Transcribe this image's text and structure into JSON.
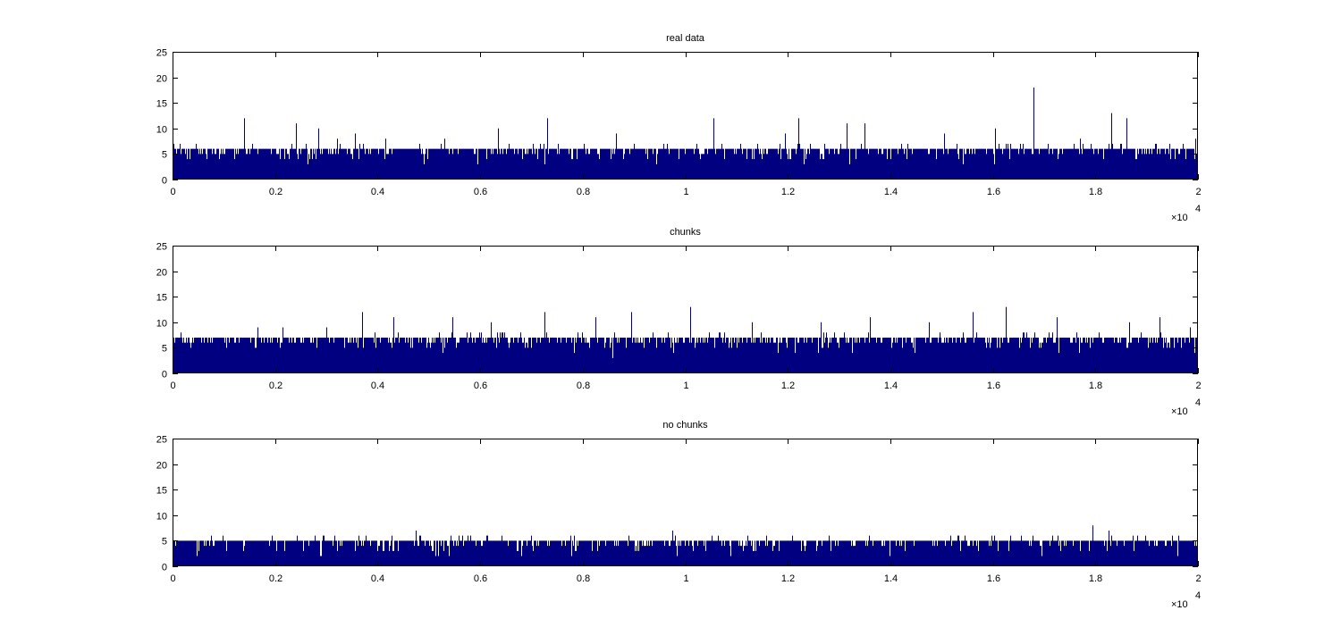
{
  "figure": {
    "background": "#ffffff"
  },
  "chart_data": [
    {
      "type": "bar",
      "title": "real data",
      "xlabel": "",
      "ylabel": "",
      "xlim": [
        0,
        20000
      ],
      "ylim": [
        0,
        25
      ],
      "xticks": [
        0,
        2000,
        4000,
        6000,
        8000,
        10000,
        12000,
        14000,
        16000,
        18000,
        20000
      ],
      "xtick_labels": [
        "0",
        "0.2",
        "0.4",
        "0.6",
        "0.8",
        "1",
        "1.2",
        "1.4",
        "1.6",
        "1.8",
        "2"
      ],
      "xtick_exponent": {
        "base": "×10",
        "power": "4"
      },
      "yticks": [
        0,
        5,
        10,
        15,
        20,
        25
      ],
      "ytick_labels": [
        "0",
        "5",
        "10",
        "15",
        "20",
        "25"
      ],
      "grid": false,
      "color": "#000080",
      "bin_count": 20000,
      "baseline_level": 3,
      "noise_amplitude": 2,
      "peaks": [
        {
          "x": 1400,
          "y": 12
        },
        {
          "x": 2400,
          "y": 11
        },
        {
          "x": 2850,
          "y": 10
        },
        {
          "x": 3200,
          "y": 8
        },
        {
          "x": 3550,
          "y": 9
        },
        {
          "x": 4150,
          "y": 8
        },
        {
          "x": 5300,
          "y": 8
        },
        {
          "x": 6350,
          "y": 10
        },
        {
          "x": 7300,
          "y": 12
        },
        {
          "x": 8650,
          "y": 9
        },
        {
          "x": 10550,
          "y": 12
        },
        {
          "x": 11950,
          "y": 9
        },
        {
          "x": 12200,
          "y": 12
        },
        {
          "x": 13150,
          "y": 11
        },
        {
          "x": 13500,
          "y": 11
        },
        {
          "x": 15050,
          "y": 9
        },
        {
          "x": 16050,
          "y": 10
        },
        {
          "x": 16800,
          "y": 18
        },
        {
          "x": 17700,
          "y": 8
        },
        {
          "x": 18300,
          "y": 13
        },
        {
          "x": 18600,
          "y": 12
        },
        {
          "x": 19700,
          "y": 7
        },
        {
          "x": 19950,
          "y": 8
        }
      ]
    },
    {
      "type": "bar",
      "title": "chunks",
      "xlabel": "",
      "ylabel": "",
      "xlim": [
        0,
        20000
      ],
      "ylim": [
        0,
        25
      ],
      "xticks": [
        0,
        2000,
        4000,
        6000,
        8000,
        10000,
        12000,
        14000,
        16000,
        18000,
        20000
      ],
      "xtick_labels": [
        "0",
        "0.2",
        "0.4",
        "0.6",
        "0.8",
        "1",
        "1.2",
        "1.4",
        "1.6",
        "1.8",
        "2"
      ],
      "xtick_exponent": {
        "base": "×10",
        "power": "4"
      },
      "yticks": [
        0,
        5,
        10,
        15,
        20,
        25
      ],
      "ytick_labels": [
        "0",
        "5",
        "10",
        "15",
        "20",
        "25"
      ],
      "grid": false,
      "color": "#000080",
      "bin_count": 20000,
      "baseline_level": 3,
      "noise_amplitude": 3,
      "peaks": [
        {
          "x": 150,
          "y": 8
        },
        {
          "x": 1650,
          "y": 9
        },
        {
          "x": 2150,
          "y": 9
        },
        {
          "x": 3000,
          "y": 9
        },
        {
          "x": 3700,
          "y": 12
        },
        {
          "x": 4300,
          "y": 11
        },
        {
          "x": 5450,
          "y": 11
        },
        {
          "x": 6200,
          "y": 10
        },
        {
          "x": 7250,
          "y": 12
        },
        {
          "x": 8250,
          "y": 11
        },
        {
          "x": 8950,
          "y": 12
        },
        {
          "x": 10100,
          "y": 13
        },
        {
          "x": 11300,
          "y": 10
        },
        {
          "x": 12650,
          "y": 10
        },
        {
          "x": 13600,
          "y": 11
        },
        {
          "x": 14750,
          "y": 10
        },
        {
          "x": 15600,
          "y": 12
        },
        {
          "x": 16250,
          "y": 13
        },
        {
          "x": 17250,
          "y": 11
        },
        {
          "x": 18650,
          "y": 10
        },
        {
          "x": 19250,
          "y": 11
        },
        {
          "x": 19850,
          "y": 9
        }
      ]
    },
    {
      "type": "bar",
      "title": "no chunks",
      "xlabel": "",
      "ylabel": "",
      "xlim": [
        0,
        20000
      ],
      "ylim": [
        0,
        25
      ],
      "xticks": [
        0,
        2000,
        4000,
        6000,
        8000,
        10000,
        12000,
        14000,
        16000,
        18000,
        20000
      ],
      "xtick_labels": [
        "0",
        "0.2",
        "0.4",
        "0.6",
        "0.8",
        "1",
        "1.2",
        "1.4",
        "1.6",
        "1.8",
        "2"
      ],
      "xtick_exponent": {
        "base": "×10",
        "power": "4"
      },
      "yticks": [
        0,
        5,
        10,
        15,
        20,
        25
      ],
      "ytick_labels": [
        "0",
        "5",
        "10",
        "15",
        "20",
        "25"
      ],
      "grid": false,
      "color": "#000080",
      "bin_count": 20000,
      "baseline_level": 2,
      "noise_amplitude": 2,
      "peaks": [
        {
          "x": 2950,
          "y": 6
        },
        {
          "x": 4750,
          "y": 7
        },
        {
          "x": 5750,
          "y": 6
        },
        {
          "x": 7000,
          "y": 6
        },
        {
          "x": 9750,
          "y": 7
        },
        {
          "x": 12000,
          "y": 5
        },
        {
          "x": 17950,
          "y": 8
        },
        {
          "x": 18250,
          "y": 7
        },
        {
          "x": 19500,
          "y": 6
        }
      ]
    }
  ]
}
